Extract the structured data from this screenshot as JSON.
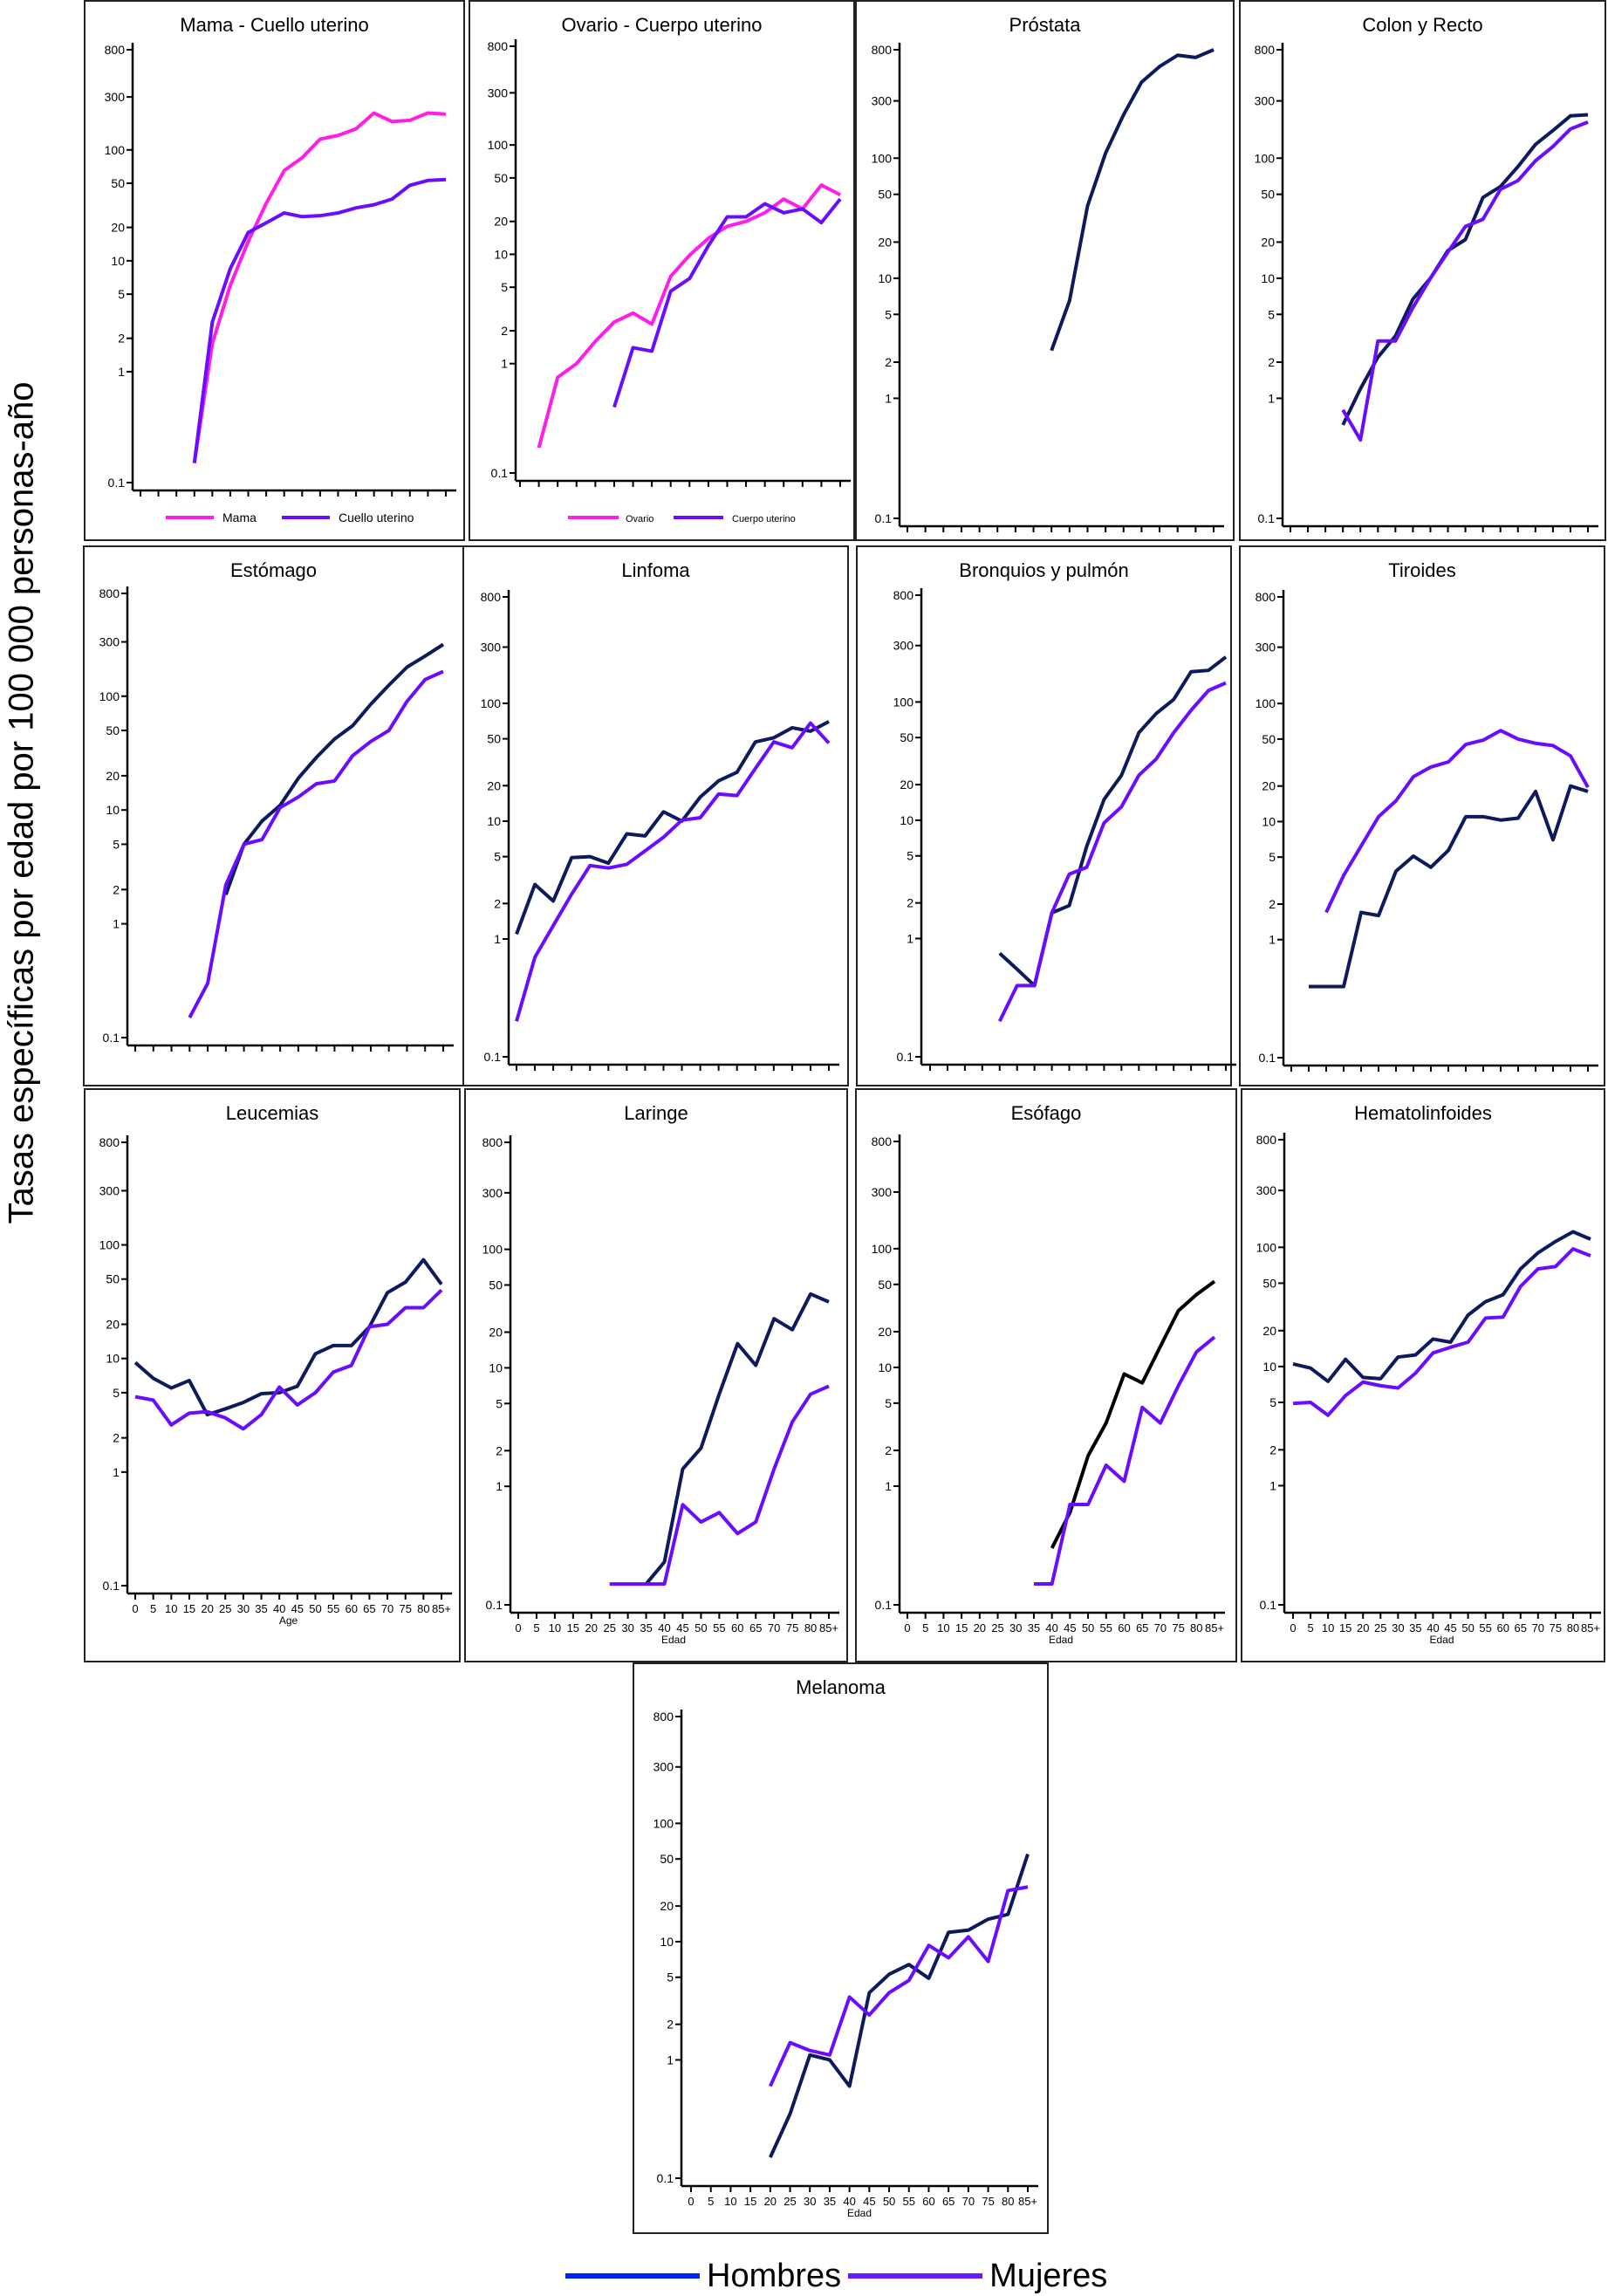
{
  "y_axis_label": "Tasas específicas por edad por 100 000 personas-año",
  "legend": {
    "items": [
      {
        "label": "Hombres",
        "color": "#0022ff"
      },
      {
        "label": "Mujeres",
        "color": "#6a1aff"
      }
    ]
  },
  "chart_data": [
    {
      "type": "line",
      "title": "Mama - Cuello uterino",
      "xlabel": "",
      "y_scale": "log",
      "ylim": [
        0.1,
        800
      ],
      "y_ticks": [
        "800",
        "300",
        "100",
        "50",
        "20",
        "10",
        "5",
        "2",
        "1",
        "0.1"
      ],
      "show_x_tick_labels": false,
      "legend": "inside-bottom",
      "categories": [
        "0",
        "5",
        "10",
        "15",
        "20",
        "25",
        "30",
        "35",
        "40",
        "45",
        "50",
        "55",
        "60",
        "65",
        "70",
        "75",
        "80",
        "85+"
      ],
      "series": [
        {
          "name": "Mama",
          "color": "#ff1ee8",
          "values": [
            null,
            null,
            null,
            0.15,
            1.8,
            6,
            15,
            33,
            65,
            85,
            125,
            135,
            155,
            215,
            180,
            185,
            215,
            210
          ]
        },
        {
          "name": "Cuello uterino",
          "color": "#6a0dff",
          "values": [
            null,
            null,
            null,
            0.15,
            2.8,
            8.5,
            18,
            22,
            27,
            25,
            25.5,
            27,
            30,
            32,
            36,
            48,
            53,
            54
          ]
        }
      ]
    },
    {
      "type": "line",
      "title": "Ovario - Cuerpo uterino",
      "xlabel": "",
      "y_scale": "log",
      "ylim": [
        0.1,
        800
      ],
      "y_ticks": [
        "800",
        "300",
        "100",
        "50",
        "20",
        "10",
        "5",
        "2",
        "1",
        "0.1"
      ],
      "show_x_tick_labels": false,
      "legend": "inside-bottom",
      "categories": [
        "0",
        "5",
        "10",
        "15",
        "20",
        "25",
        "30",
        "35",
        "40",
        "45",
        "50",
        "55",
        "60",
        "65",
        "70",
        "75",
        "80",
        "85+"
      ],
      "series": [
        {
          "name": "Ovario",
          "color": "#ff1ee8",
          "values": [
            null,
            0.17,
            0.75,
            1,
            1.6,
            2.4,
            2.9,
            2.3,
            6.3,
            9.8,
            14,
            18,
            20,
            24,
            32,
            26,
            43,
            35
          ]
        },
        {
          "name": "Cuerpo uterino",
          "color": "#6a0dff",
          "values": [
            null,
            null,
            null,
            null,
            null,
            0.4,
            1.4,
            1.3,
            4.6,
            6,
            12,
            22,
            22,
            29,
            24,
            26,
            19.5,
            32
          ]
        }
      ]
    },
    {
      "type": "line",
      "title": "Próstata",
      "xlabel": "",
      "y_scale": "log",
      "ylim": [
        0.1,
        800
      ],
      "y_ticks": [
        "800",
        "300",
        "100",
        "50",
        "20",
        "10",
        "5",
        "2",
        "1",
        "0.1"
      ],
      "show_x_tick_labels": false,
      "categories": [
        "0",
        "5",
        "10",
        "15",
        "20",
        "25",
        "30",
        "35",
        "40",
        "45",
        "50",
        "55",
        "60",
        "65",
        "70",
        "75",
        "80",
        "85+"
      ],
      "series": [
        {
          "name": "Hombres",
          "color": "#0d1a5c",
          "values": [
            null,
            null,
            null,
            null,
            null,
            null,
            null,
            null,
            2.5,
            6.5,
            40,
            110,
            230,
            430,
            580,
            720,
            690,
            800
          ]
        }
      ]
    },
    {
      "type": "line",
      "title": "Colon y Recto",
      "xlabel": "",
      "y_scale": "log",
      "ylim": [
        0.1,
        800
      ],
      "y_ticks": [
        "800",
        "300",
        "100",
        "50",
        "20",
        "10",
        "5",
        "2",
        "1",
        "0.1"
      ],
      "show_x_tick_labels": false,
      "categories": [
        "0",
        "5",
        "10",
        "15",
        "20",
        "25",
        "30",
        "35",
        "40",
        "45",
        "50",
        "55",
        "60",
        "65",
        "70",
        "75",
        "80",
        "85+"
      ],
      "series": [
        {
          "name": "Hombres",
          "color": "#0d1a5c",
          "values": [
            null,
            null,
            null,
            0.6,
            1.2,
            2.2,
            3.3,
            6.7,
            10,
            17,
            21,
            47,
            58,
            85,
            130,
            170,
            225,
            230
          ]
        },
        {
          "name": "Mujeres",
          "color": "#6a0dff",
          "values": [
            null,
            null,
            null,
            0.8,
            0.45,
            3,
            3,
            5.7,
            10,
            16.5,
            27,
            31,
            55,
            65,
            95,
            125,
            175,
            200
          ]
        }
      ]
    },
    {
      "type": "line",
      "title": "Estómago",
      "xlabel": "",
      "y_scale": "log",
      "ylim": [
        0.1,
        800
      ],
      "y_ticks": [
        "800",
        "300",
        "100",
        "50",
        "20",
        "10",
        "5",
        "2",
        "1",
        "0.1"
      ],
      "show_x_tick_labels": false,
      "categories": [
        "0",
        "5",
        "10",
        "15",
        "20",
        "25",
        "30",
        "35",
        "40",
        "45",
        "50",
        "55",
        "60",
        "65",
        "70",
        "75",
        "80",
        "85+"
      ],
      "series": [
        {
          "name": "Hombres",
          "color": "#0d1a5c",
          "values": [
            null,
            null,
            null,
            null,
            null,
            1.8,
            5,
            8,
            11,
            19,
            29,
            42,
            55,
            85,
            125,
            180,
            225,
            285
          ]
        },
        {
          "name": "Mujeres",
          "color": "#6a0dff",
          "values": [
            null,
            null,
            null,
            0.15,
            0.3,
            2.2,
            5,
            5.5,
            10.5,
            13,
            17,
            18,
            30,
            40,
            50,
            90,
            140,
            165
          ]
        }
      ]
    },
    {
      "type": "line",
      "title": "Linfoma",
      "xlabel": "",
      "y_scale": "log",
      "ylim": [
        0.1,
        800
      ],
      "y_ticks": [
        "800",
        "300",
        "100",
        "50",
        "20",
        "10",
        "5",
        "2",
        "1",
        "0.1"
      ],
      "show_x_tick_labels": false,
      "categories": [
        "0",
        "5",
        "10",
        "15",
        "20",
        "25",
        "30",
        "35",
        "40",
        "45",
        "50",
        "55",
        "60",
        "65",
        "70",
        "75",
        "80",
        "85+"
      ],
      "series": [
        {
          "name": "Hombres",
          "color": "#0d1a5c",
          "values": [
            1.1,
            2.9,
            2.1,
            4.9,
            5,
            4.4,
            7.8,
            7.5,
            12,
            10,
            16,
            22,
            26,
            47,
            51,
            62,
            58,
            70
          ]
        },
        {
          "name": "Mujeres",
          "color": "#6a0dff",
          "values": [
            0.2,
            0.7,
            1.3,
            2.4,
            4.2,
            4,
            4.3,
            5.6,
            7.3,
            10.2,
            10.7,
            17,
            16.5,
            28,
            47,
            42,
            68,
            46
          ]
        }
      ]
    },
    {
      "type": "line",
      "title": "Bronquios y pulmón",
      "xlabel": "",
      "y_scale": "log",
      "ylim": [
        0.1,
        800
      ],
      "y_ticks": [
        "800",
        "300",
        "100",
        "50",
        "20",
        "10",
        "5",
        "2",
        "1",
        "0.1"
      ],
      "show_x_tick_labels": false,
      "categories": [
        "0",
        "5",
        "10",
        "15",
        "20",
        "25",
        "30",
        "35",
        "40",
        "45",
        "50",
        "55",
        "60",
        "65",
        "70",
        "75",
        "80",
        "85+"
      ],
      "series": [
        {
          "name": "Hombres",
          "color": "#0d1a5c",
          "values": [
            null,
            null,
            null,
            null,
            0.75,
            0.55,
            0.4,
            1.65,
            1.9,
            6,
            15,
            24,
            55,
            80,
            105,
            180,
            185,
            240
          ]
        },
        {
          "name": "Mujeres",
          "color": "#6a0dff",
          "values": [
            null,
            null,
            null,
            null,
            0.2,
            0.4,
            0.4,
            1.65,
            3.5,
            4,
            9.5,
            13,
            24,
            33,
            55,
            85,
            125,
            145
          ]
        }
      ]
    },
    {
      "type": "line",
      "title": "Tiroides",
      "xlabel": "",
      "y_scale": "log",
      "ylim": [
        0.1,
        800
      ],
      "y_ticks": [
        "800",
        "300",
        "100",
        "50",
        "20",
        "10",
        "5",
        "2",
        "1",
        "0.1"
      ],
      "show_x_tick_labels": false,
      "categories": [
        "0",
        "5",
        "10",
        "15",
        "20",
        "25",
        "30",
        "35",
        "40",
        "45",
        "50",
        "55",
        "60",
        "65",
        "70",
        "75",
        "80",
        "85+"
      ],
      "series": [
        {
          "name": "Hombres",
          "color": "#0d1a5c",
          "values": [
            null,
            0.4,
            0.4,
            0.4,
            1.7,
            1.6,
            3.8,
            5.1,
            4.1,
            5.7,
            11,
            11,
            10.3,
            10.7,
            18,
            7,
            20,
            18
          ]
        },
        {
          "name": "Mujeres",
          "color": "#6a0dff",
          "values": [
            null,
            null,
            1.7,
            3.5,
            6.2,
            11,
            15,
            24,
            29,
            32,
            45,
            49,
            59,
            50,
            46,
            44,
            36,
            19.5
          ]
        }
      ]
    },
    {
      "type": "line",
      "title": "Leucemias",
      "xlabel": "Age",
      "y_scale": "log",
      "ylim": [
        0.1,
        800
      ],
      "y_ticks": [
        "800",
        "300",
        "100",
        "50",
        "20",
        "10",
        "5",
        "2",
        "1",
        "0.1"
      ],
      "show_x_tick_labels": true,
      "categories": [
        "0",
        "5",
        "10",
        "15",
        "20",
        "25",
        "30",
        "35",
        "40",
        "45",
        "50",
        "55",
        "60",
        "65",
        "70",
        "75",
        "80",
        "85+"
      ],
      "series": [
        {
          "name": "Hombres",
          "color": "#0d1a5c",
          "values": [
            9.2,
            6.7,
            5.5,
            6.4,
            3.2,
            3.6,
            4.1,
            4.9,
            5,
            5.7,
            11,
            13,
            13,
            19,
            38,
            47,
            74,
            45
          ]
        },
        {
          "name": "Mujeres",
          "color": "#6a0dff",
          "values": [
            4.6,
            4.3,
            2.6,
            3.3,
            3.4,
            3,
            2.4,
            3.2,
            5.6,
            3.9,
            5,
            7.6,
            8.7,
            19,
            20,
            28,
            28,
            40
          ]
        }
      ]
    },
    {
      "type": "line",
      "title": "Laringe",
      "xlabel": "Edad",
      "y_scale": "log",
      "ylim": [
        0.1,
        800
      ],
      "y_ticks": [
        "800",
        "300",
        "100",
        "50",
        "20",
        "10",
        "5",
        "2",
        "1",
        "0.1"
      ],
      "show_x_tick_labels": true,
      "categories": [
        "0",
        "5",
        "10",
        "15",
        "20",
        "25",
        "30",
        "35",
        "40",
        "45",
        "50",
        "55",
        "60",
        "65",
        "70",
        "75",
        "80",
        "85+"
      ],
      "series": [
        {
          "name": "Hombres",
          "color": "#0d1a5c",
          "values": [
            null,
            null,
            null,
            null,
            null,
            null,
            null,
            0.15,
            0.23,
            1.4,
            2.1,
            6,
            16,
            10.5,
            26,
            21,
            42,
            36
          ]
        },
        {
          "name": "Mujeres",
          "color": "#6a0dff",
          "values": [
            null,
            null,
            null,
            null,
            null,
            0.15,
            0.15,
            0.15,
            0.15,
            0.7,
            0.5,
            0.6,
            0.4,
            0.5,
            1.4,
            3.5,
            6,
            7
          ]
        }
      ]
    },
    {
      "type": "line",
      "title": "Esófago",
      "xlabel": "Edad",
      "y_scale": "log",
      "ylim": [
        0.1,
        800
      ],
      "y_ticks": [
        "800",
        "300",
        "100",
        "50",
        "20",
        "10",
        "5",
        "2",
        "1",
        "0.1"
      ],
      "show_x_tick_labels": true,
      "categories": [
        "0",
        "5",
        "10",
        "15",
        "20",
        "25",
        "30",
        "35",
        "40",
        "45",
        "50",
        "55",
        "60",
        "65",
        "70",
        "75",
        "80",
        "85+"
      ],
      "series": [
        {
          "name": "Hombres",
          "color": "#000000",
          "values": [
            null,
            null,
            null,
            null,
            null,
            null,
            null,
            null,
            0.3,
            0.6,
            1.8,
            3.4,
            8.8,
            7.4,
            15,
            30,
            41,
            53
          ]
        },
        {
          "name": "Mujeres",
          "color": "#6a0dff",
          "values": [
            null,
            null,
            null,
            null,
            null,
            null,
            null,
            0.15,
            0.15,
            0.7,
            0.7,
            1.5,
            1.1,
            4.6,
            3.4,
            7,
            13.5,
            18
          ]
        }
      ]
    },
    {
      "type": "line",
      "title": "Hematolinfoides",
      "xlabel": "Edad",
      "y_scale": "log",
      "ylim": [
        0.1,
        800
      ],
      "y_ticks": [
        "800",
        "300",
        "100",
        "50",
        "20",
        "10",
        "5",
        "2",
        "1",
        "0.1"
      ],
      "show_x_tick_labels": true,
      "categories": [
        "0",
        "5",
        "10",
        "15",
        "20",
        "25",
        "30",
        "35",
        "40",
        "45",
        "50",
        "55",
        "60",
        "65",
        "70",
        "75",
        "80",
        "85+"
      ],
      "series": [
        {
          "name": "Hombres",
          "color": "#0d1a5c",
          "values": [
            10.5,
            9.7,
            7.5,
            11.5,
            8.1,
            7.9,
            12,
            12.5,
            17,
            16,
            27,
            35,
            40,
            66,
            90,
            112,
            135,
            117
          ]
        },
        {
          "name": "Mujeres",
          "color": "#6a0dff",
          "values": [
            4.9,
            5,
            3.9,
            5.7,
            7.4,
            6.9,
            6.6,
            8.8,
            13,
            14.5,
            16,
            25.5,
            26,
            47,
            66,
            69,
            97,
            85
          ]
        }
      ]
    },
    {
      "type": "line",
      "title": "Melanoma",
      "xlabel": "Edad",
      "y_scale": "log",
      "ylim": [
        0.1,
        800
      ],
      "y_ticks": [
        "800",
        "300",
        "100",
        "50",
        "20",
        "10",
        "5",
        "2",
        "1",
        "0.1"
      ],
      "show_x_tick_labels": true,
      "categories": [
        "0",
        "5",
        "10",
        "15",
        "20",
        "25",
        "30",
        "35",
        "40",
        "45",
        "50",
        "55",
        "60",
        "65",
        "70",
        "75",
        "80",
        "85+"
      ],
      "series": [
        {
          "name": "Hombres",
          "color": "#0d1a5c",
          "values": [
            null,
            null,
            null,
            null,
            0.15,
            0.35,
            1.1,
            1,
            0.6,
            3.7,
            5.3,
            6.4,
            4.9,
            12,
            12.5,
            15.5,
            17,
            55
          ]
        },
        {
          "name": "Mujeres",
          "color": "#6a0dff",
          "values": [
            null,
            null,
            null,
            null,
            0.6,
            1.4,
            1.2,
            1.1,
            3.4,
            2.4,
            3.7,
            4.7,
            9.3,
            7.3,
            11,
            6.8,
            27,
            29
          ]
        }
      ]
    }
  ]
}
